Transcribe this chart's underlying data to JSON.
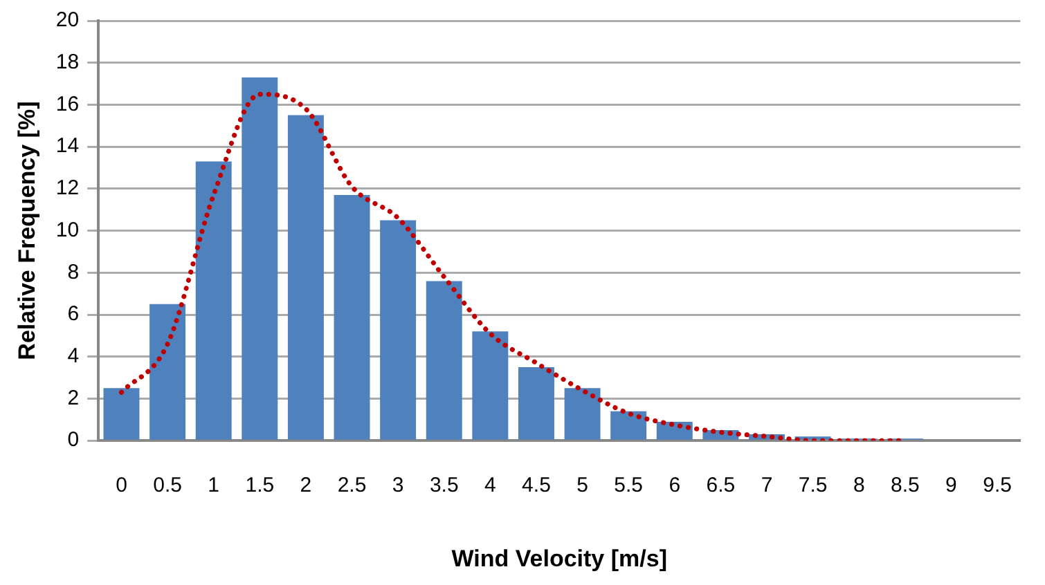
{
  "chart_data": {
    "type": "bar",
    "xlabel": "Wind Velocity [m/s]",
    "ylabel": "Relative Frequency [%]",
    "categories": [
      "0",
      "0.5",
      "1",
      "1.5",
      "2",
      "2.5",
      "3",
      "3.5",
      "4",
      "4.5",
      "5",
      "5.5",
      "6",
      "6.5",
      "7",
      "7.5",
      "8",
      "8.5",
      "9",
      "9.5"
    ],
    "series": [
      {
        "color": "#4f81bd",
        "values": [
          2.5,
          6.5,
          13.3,
          17.3,
          15.5,
          11.7,
          10.5,
          7.6,
          5.2,
          3.5,
          2.5,
          1.4,
          0.9,
          0.5,
          0.3,
          0.2,
          0.1,
          0.1,
          0,
          0
        ]
      },
      {
        "type": "line",
        "color": "#c00000",
        "line_style": "dotted",
        "values": [
          2.3,
          4.6,
          11.7,
          16.5,
          15.8,
          12.1,
          10.6,
          7.8,
          5.1,
          3.7,
          2.4,
          1.3,
          0.75,
          0.4,
          0.2,
          0,
          0,
          0,
          null,
          null
        ]
      }
    ],
    "ylim": [
      0,
      20
    ],
    "yticks": [
      0,
      2,
      4,
      6,
      8,
      10,
      12,
      14,
      16,
      18,
      20
    ],
    "grid": "y",
    "legend": false
  }
}
